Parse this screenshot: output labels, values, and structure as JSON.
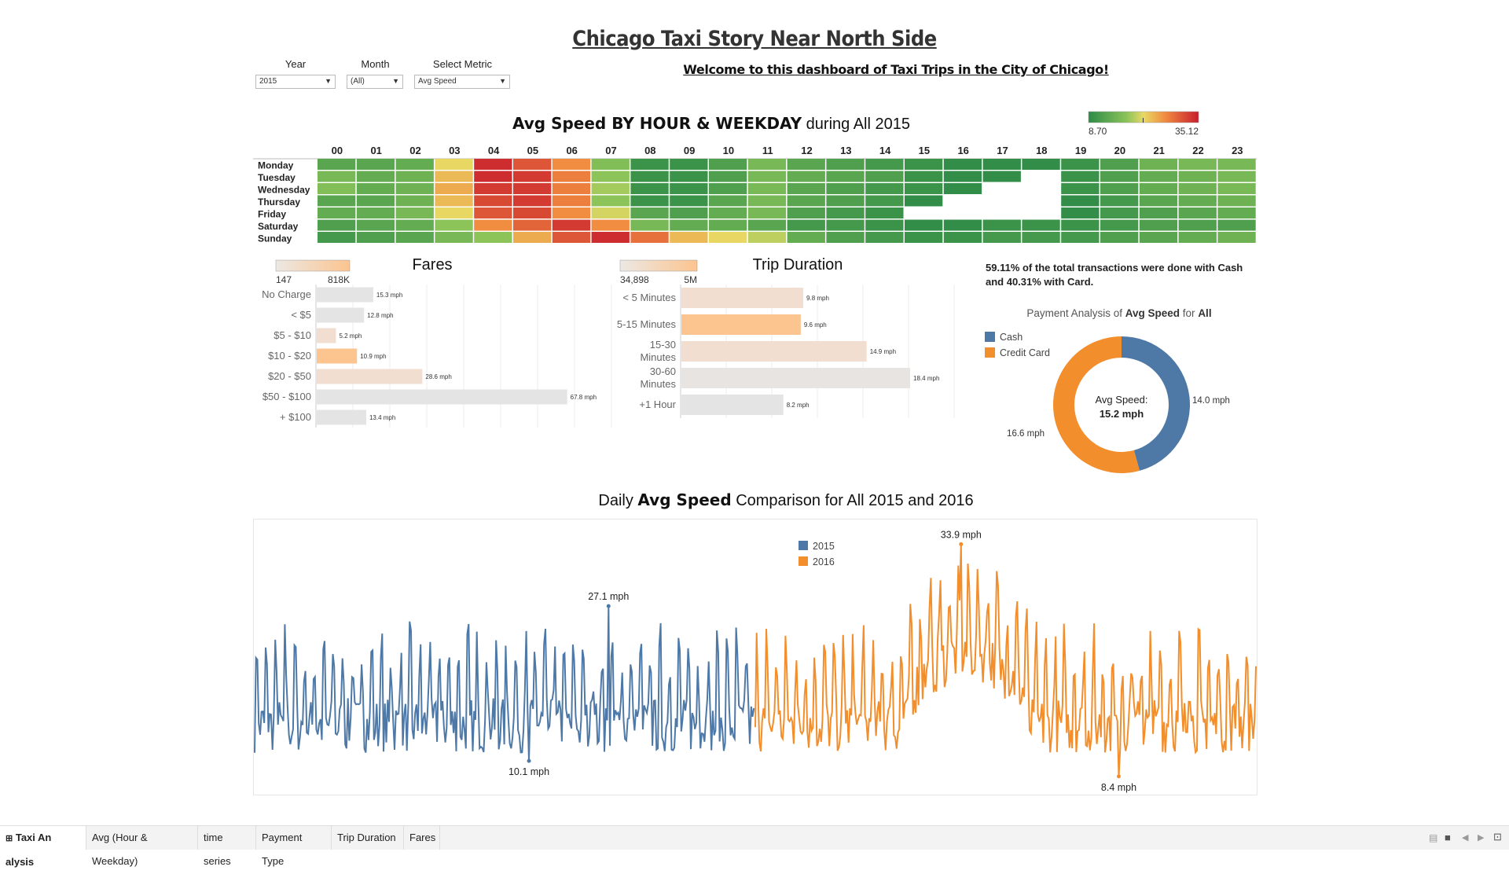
{
  "header": {
    "title": "Chicago Taxi Story Near North Side",
    "welcome": "Welcome to this dashboard of Taxi Trips in the City of Chicago!"
  },
  "filters": {
    "year": {
      "label": "Year",
      "value": "2015"
    },
    "month": {
      "label": "Month",
      "value": "(All)"
    },
    "metric": {
      "label": "Select Metric",
      "value": "Avg Speed"
    }
  },
  "heatmap": {
    "title_bold": "Avg Speed BY HOUR & WEEKDAY",
    "title_rest": "during All 2015",
    "legend_min": "8.70",
    "legend_max": "35.12",
    "hours": [
      "00",
      "01",
      "02",
      "03",
      "04",
      "05",
      "06",
      "07",
      "08",
      "09",
      "10",
      "11",
      "12",
      "13",
      "14",
      "15",
      "16",
      "17",
      "18",
      "19",
      "20",
      "21",
      "22",
      "23"
    ],
    "days": [
      "Monday",
      "Tuesday",
      "Wednesday",
      "Thursday",
      "Friday",
      "Saturday",
      "Sunday"
    ],
    "values": [
      [
        13,
        13,
        14,
        22,
        34,
        31,
        27,
        17,
        10,
        10,
        12,
        16,
        13,
        12,
        11,
        10,
        9,
        9,
        9,
        10,
        12,
        15,
        16,
        16
      ],
      [
        16,
        14,
        15,
        24,
        34,
        33,
        28,
        18,
        10,
        10,
        12,
        16,
        14,
        13,
        12,
        10,
        9,
        9,
        null,
        10,
        12,
        14,
        15,
        16
      ],
      [
        17,
        14,
        15,
        25,
        33,
        33,
        28,
        19,
        10,
        10,
        12,
        16,
        13,
        12,
        11,
        10,
        9,
        null,
        null,
        10,
        12,
        14,
        15,
        16
      ],
      [
        13,
        13,
        15,
        24,
        32,
        33,
        28,
        18,
        10,
        10,
        13,
        16,
        13,
        12,
        11,
        9,
        null,
        null,
        null,
        9,
        11,
        13,
        14,
        15
      ],
      [
        14,
        14,
        16,
        22,
        31,
        32,
        27,
        21,
        13,
        12,
        14,
        16,
        12,
        11,
        10,
        null,
        null,
        null,
        null,
        9,
        11,
        12,
        13,
        14
      ],
      [
        12,
        13,
        14,
        18,
        27,
        30,
        33,
        27,
        16,
        14,
        14,
        13,
        11,
        11,
        10,
        9,
        9,
        10,
        10,
        10,
        11,
        12,
        12,
        12
      ],
      [
        11,
        12,
        13,
        16,
        18,
        25,
        31,
        34,
        29,
        24,
        22,
        20,
        14,
        12,
        11,
        10,
        10,
        11,
        11,
        11,
        12,
        13,
        14,
        15
      ]
    ]
  },
  "fares": {
    "title": "Fares",
    "legend_min": "147",
    "legend_max": "818K",
    "categories": [
      "No Charge",
      "< $5",
      "$5 - $10",
      "$10 - $20",
      "$20 - $50",
      "$50 - $100",
      "+ $100"
    ],
    "values": [
      15.3,
      12.8,
      5.2,
      10.9,
      28.6,
      67.8,
      13.4
    ],
    "labels": [
      "15.3 mph",
      "12.8 mph",
      "5.2 mph",
      "10.9 mph",
      "28.6 mph",
      "67.8 mph",
      "13.4 mph"
    ],
    "colors": [
      "#e4e4e4",
      "#e4e4e4",
      "#f1ded0",
      "#fcc48f",
      "#f1ded0",
      "#e4e4e4",
      "#e4e4e4"
    ],
    "xmax": 80
  },
  "trip_duration": {
    "title": "Trip Duration",
    "legend_min": "34,898",
    "legend_max": "5M",
    "categories": [
      "< 5 Minutes",
      "5-15 Minutes",
      "15-30 Minutes",
      "30-60 Minutes",
      "+1 Hour"
    ],
    "values": [
      9.8,
      9.6,
      14.9,
      18.4,
      8.2
    ],
    "labels": [
      "9.8 mph",
      "9.6 mph",
      "14.9 mph",
      "18.4 mph",
      "8.2 mph"
    ],
    "colors": [
      "#f1ded0",
      "#fcc48f",
      "#f1ded0",
      "#e8e4e1",
      "#e4e4e4"
    ],
    "xmax": 22
  },
  "payment": {
    "note": "59.11% of the total transactions were done with Cash and 40.31%  with Card.",
    "title_pre": "Payment Analysis of",
    "title_metric": "Avg Speed",
    "title_mid": "for",
    "title_all": "All",
    "center_label": "Avg Speed:",
    "center_value": "15.2 mph",
    "chart_data": {
      "type": "pie",
      "categories": [
        "Cash",
        "Credit Card"
      ],
      "values": [
        14.0,
        16.6
      ],
      "labels": [
        "14.0 mph",
        "16.6 mph"
      ],
      "colors": [
        "#4e79a7",
        "#f28e2b"
      ]
    }
  },
  "timeseries": {
    "title_pre": "Daily",
    "title_metric": "Avg Speed",
    "title_post": "Comparison for All  2015 and 2016",
    "legend": [
      {
        "name": "2015",
        "color": "#4e79a7"
      },
      {
        "name": "2016",
        "color": "#f28e2b"
      }
    ],
    "annotations": {
      "max_2015": "27.1 mph",
      "min_2015": "10.1 mph",
      "max_2016": "33.9 mph",
      "min_2016": "8.4 mph"
    },
    "chart_data": {
      "type": "line",
      "ylim": [
        7,
        36
      ],
      "series": [
        {
          "name": "2015",
          "days": 365,
          "min": 10.1,
          "max": 27.1,
          "max_day": 258,
          "min_day": 200
        },
        {
          "name": "2016",
          "days": 366,
          "min": 8.4,
          "max": 33.9,
          "max_day": 150,
          "min_day": 265
        }
      ]
    }
  },
  "tabs": [
    "Taxi An alysis",
    "Avg (Hour & Weekday)",
    "time series",
    "Payment Type",
    "Trip Duration",
    "Fares"
  ]
}
